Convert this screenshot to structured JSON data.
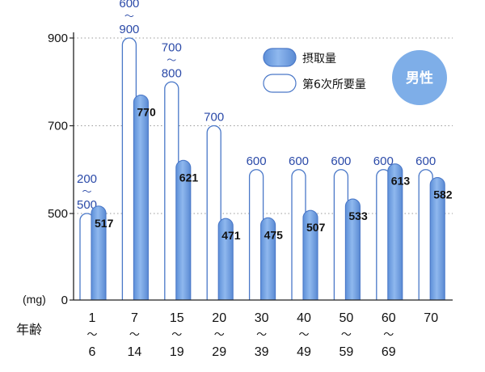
{
  "chart_data": {
    "type": "bar",
    "ylabel": "(mg)",
    "xlabel": "年齢",
    "ylim": [
      0,
      900
    ],
    "yticks": [
      0,
      500,
      700,
      900
    ],
    "categories": [
      {
        "top": "1",
        "bottom": "6"
      },
      {
        "top": "7",
        "bottom": "14"
      },
      {
        "top": "15",
        "bottom": "19"
      },
      {
        "top": "20",
        "bottom": "29"
      },
      {
        "top": "30",
        "bottom": "39"
      },
      {
        "top": "40",
        "bottom": "49"
      },
      {
        "top": "50",
        "bottom": "59"
      },
      {
        "top": "60",
        "bottom": "69"
      },
      {
        "top": "70",
        "bottom": ""
      }
    ],
    "range_separator": "〜",
    "series": [
      {
        "name": "摂取量",
        "values": [
          517,
          770,
          621,
          471,
          475,
          507,
          533,
          613,
          582
        ],
        "labels": [
          "517",
          "770",
          "621",
          "471",
          "475",
          "507",
          "533",
          "613",
          "582"
        ]
      },
      {
        "name": "第6次所要量",
        "values": [
          500,
          900,
          800,
          700,
          600,
          600,
          600,
          600,
          600
        ],
        "labels": [
          [
            "200",
            "500"
          ],
          [
            "600",
            "900"
          ],
          [
            "700",
            "800"
          ],
          [
            "700"
          ],
          [
            "600"
          ],
          [
            "600"
          ],
          [
            "600"
          ],
          [
            "600"
          ],
          [
            "600"
          ]
        ]
      }
    ],
    "grid": "dotted horizontal lines at 500, 700, 900",
    "legend_position": "top-right",
    "badge": "男性",
    "colors": {
      "intake": "#6c9fe0",
      "intake_light": "#a8c8f2",
      "requirement_fill": "#ffffff",
      "requirement_stroke": "#4a78c8",
      "label_blue": "#2b4aa8",
      "badge": "#7eaee8"
    }
  }
}
